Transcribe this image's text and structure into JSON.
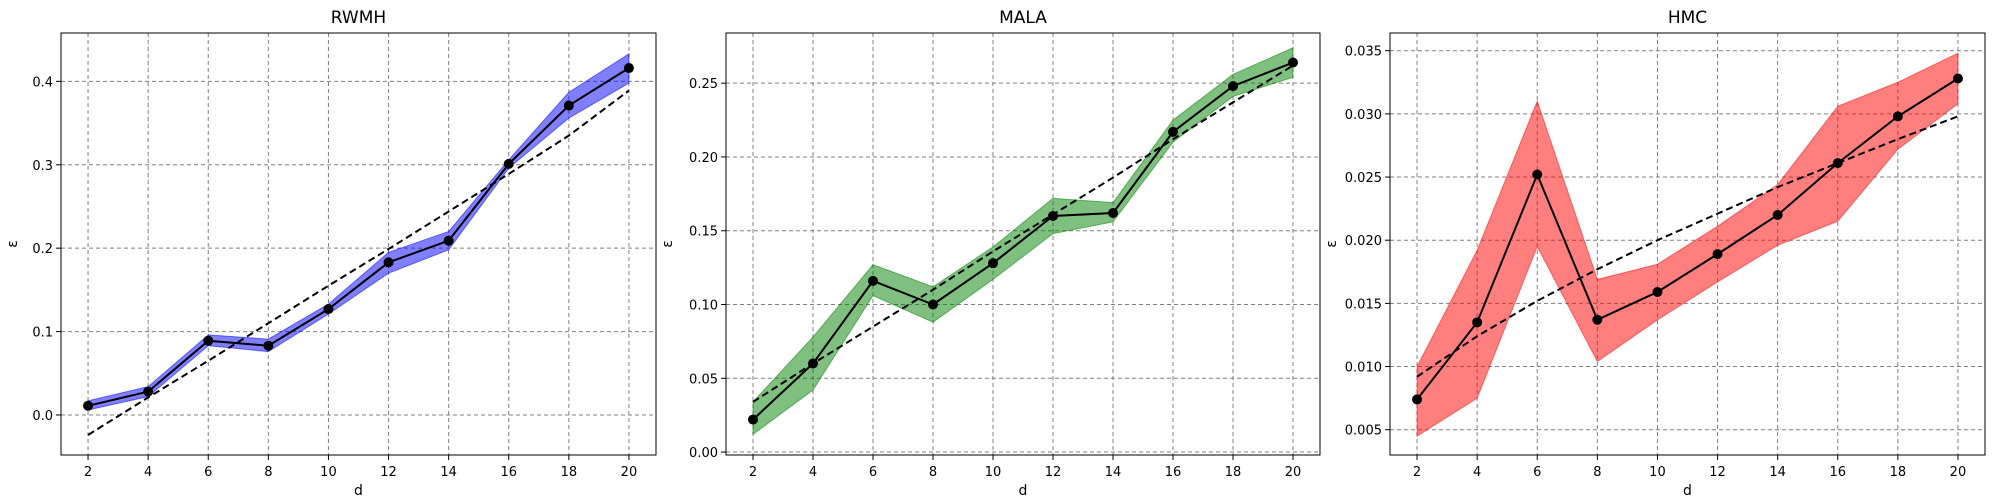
{
  "chart_data": [
    {
      "type": "line",
      "title": "RWMH",
      "xlabel": "d",
      "ylabel": "ε",
      "x": [
        2,
        4,
        6,
        8,
        10,
        12,
        14,
        16,
        18,
        20
      ],
      "xlim": [
        1.1,
        20.9
      ],
      "ylim": [
        -0.048,
        0.458
      ],
      "xticks": [
        2,
        4,
        6,
        8,
        10,
        12,
        14,
        16,
        18,
        20
      ],
      "yticks": [
        0.0,
        0.1,
        0.2,
        0.3,
        0.4
      ],
      "ytick_labels": [
        "0.0",
        "0.1",
        "0.2",
        "0.3",
        "0.4"
      ],
      "grid": true,
      "band_color": "#0000ff",
      "mean": [
        0.011,
        0.028,
        0.089,
        0.083,
        0.127,
        0.183,
        0.209,
        0.301,
        0.371,
        0.416
      ],
      "band_lower": [
        0.006,
        0.022,
        0.083,
        0.076,
        0.121,
        0.17,
        0.198,
        0.296,
        0.356,
        0.398
      ],
      "band_upper": [
        0.017,
        0.034,
        0.096,
        0.091,
        0.133,
        0.195,
        0.22,
        0.306,
        0.387,
        0.433
      ],
      "fit": [
        -0.024,
        0.021,
        0.065,
        0.11,
        0.155,
        0.199,
        0.244,
        0.289,
        0.335,
        0.389
      ]
    },
    {
      "type": "line",
      "title": "MALA",
      "xlabel": "d",
      "ylabel": "ε",
      "x": [
        2,
        4,
        6,
        8,
        10,
        12,
        14,
        16,
        18,
        20
      ],
      "xlim": [
        1.1,
        20.9
      ],
      "ylim": [
        -0.002,
        0.284
      ],
      "xticks": [
        2,
        4,
        6,
        8,
        10,
        12,
        14,
        16,
        18,
        20
      ],
      "yticks": [
        0.0,
        0.05,
        0.1,
        0.15,
        0.2,
        0.25
      ],
      "ytick_labels": [
        "0.00",
        "0.05",
        "0.10",
        "0.15",
        "0.20",
        "0.25"
      ],
      "grid": true,
      "band_color": "#008000",
      "mean": [
        0.022,
        0.06,
        0.116,
        0.1,
        0.128,
        0.16,
        0.162,
        0.217,
        0.248,
        0.264
      ],
      "band_lower": [
        0.012,
        0.042,
        0.106,
        0.088,
        0.117,
        0.148,
        0.156,
        0.21,
        0.241,
        0.254
      ],
      "band_upper": [
        0.034,
        0.078,
        0.127,
        0.112,
        0.139,
        0.172,
        0.169,
        0.225,
        0.256,
        0.274
      ],
      "fit": [
        0.034,
        0.06,
        0.085,
        0.11,
        0.136,
        0.161,
        0.186,
        0.212,
        0.237,
        0.262
      ]
    },
    {
      "type": "line",
      "title": "HMC",
      "xlabel": "d",
      "ylabel": "ε",
      "x": [
        2,
        4,
        6,
        8,
        10,
        12,
        14,
        16,
        18,
        20
      ],
      "xlim": [
        1.1,
        20.9
      ],
      "ylim": [
        0.003,
        0.0364
      ],
      "xticks": [
        2,
        4,
        6,
        8,
        10,
        12,
        14,
        16,
        18,
        20
      ],
      "yticks": [
        0.005,
        0.01,
        0.015,
        0.02,
        0.025,
        0.03,
        0.035
      ],
      "ytick_labels": [
        "0.005",
        "0.010",
        "0.015",
        "0.020",
        "0.025",
        "0.030",
        "0.035"
      ],
      "grid": true,
      "band_color": "#ff0000",
      "mean": [
        0.0074,
        0.0135,
        0.0252,
        0.0137,
        0.0159,
        0.0189,
        0.022,
        0.0261,
        0.0298,
        0.0328
      ],
      "band_lower": [
        0.0045,
        0.0075,
        0.0195,
        0.0104,
        0.0137,
        0.0167,
        0.0196,
        0.0215,
        0.0272,
        0.0308
      ],
      "band_upper": [
        0.01,
        0.0192,
        0.031,
        0.0169,
        0.0181,
        0.0211,
        0.0244,
        0.0306,
        0.0325,
        0.0348
      ],
      "fit": [
        0.0092,
        0.0124,
        0.0152,
        0.0177,
        0.02,
        0.0221,
        0.0242,
        0.0261,
        0.028,
        0.0298
      ]
    }
  ]
}
